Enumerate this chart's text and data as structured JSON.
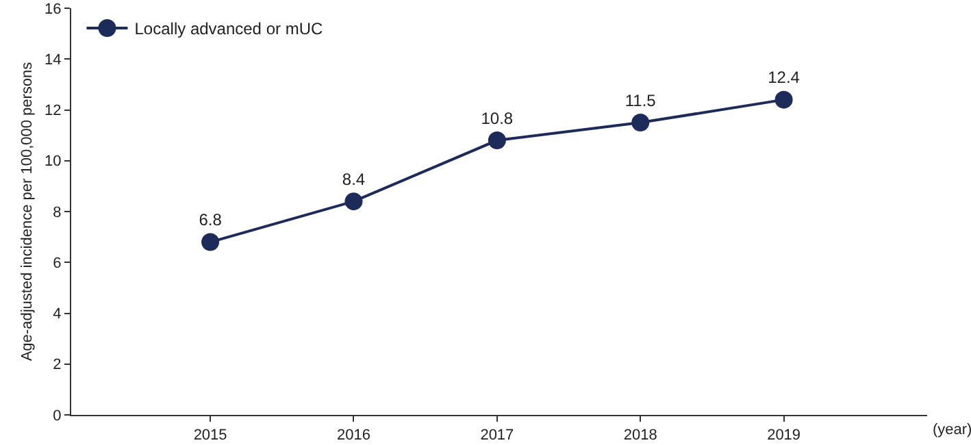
{
  "chart_data": {
    "type": "line",
    "xlabel": "(year)",
    "ylabel": "Age-adjusted incidence per 100,000 persons",
    "x": [
      2015,
      2016,
      2017,
      2018,
      2019
    ],
    "series": [
      {
        "name": "Locally advanced or mUC",
        "color": "#1c2b59",
        "values": [
          6.8,
          8.4,
          10.8,
          11.5,
          12.4
        ]
      }
    ],
    "xlim": [
      2014.03,
      2020
    ],
    "xticks": [
      2015,
      2016,
      2017,
      2018,
      2019
    ],
    "ylim": [
      0,
      16
    ],
    "yticks": [
      0,
      2,
      4,
      6,
      8,
      10,
      12,
      14,
      16
    ],
    "grid": false,
    "legend": "top left",
    "marker": "circle",
    "line_style": "solid",
    "data_labels": true
  }
}
